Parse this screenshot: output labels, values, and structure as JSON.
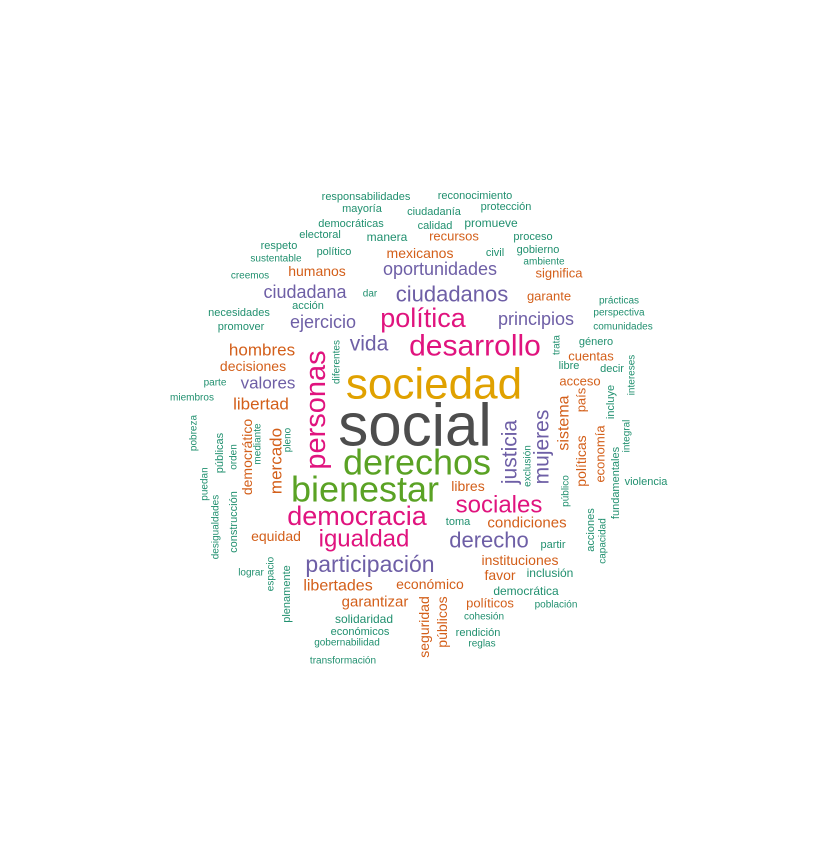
{
  "palette": {
    "gray": "#4d4d4d",
    "gold": "#e0a100",
    "green": "#5aa224",
    "magenta": "#e0137e",
    "purple": "#6e5fa6",
    "orange": "#d35f1a",
    "teal": "#21906f"
  },
  "chart_data": {
    "type": "wordcloud",
    "title": "",
    "words": [
      {
        "text": "social",
        "weight": 60,
        "color": "gray"
      },
      {
        "text": "sociedad",
        "weight": 44,
        "color": "gold"
      },
      {
        "text": "derechos",
        "weight": 36,
        "color": "green"
      },
      {
        "text": "bienestar",
        "weight": 36,
        "color": "green"
      },
      {
        "text": "desarrollo",
        "weight": 30,
        "color": "magenta"
      },
      {
        "text": "personas",
        "weight": 29,
        "color": "magenta",
        "vertical": true
      },
      {
        "text": "democracia",
        "weight": 27,
        "color": "magenta"
      },
      {
        "text": "política",
        "weight": 27,
        "color": "magenta"
      },
      {
        "text": "sociales",
        "weight": 24,
        "color": "magenta"
      },
      {
        "text": "igualdad",
        "weight": 24,
        "color": "magenta"
      },
      {
        "text": "participación",
        "weight": 23,
        "color": "purple"
      },
      {
        "text": "derecho",
        "weight": 22,
        "color": "purple"
      },
      {
        "text": "ciudadanos",
        "weight": 22,
        "color": "purple"
      },
      {
        "text": "justicia",
        "weight": 21,
        "color": "purple",
        "vertical": true
      },
      {
        "text": "mujeres",
        "weight": 21,
        "color": "purple",
        "vertical": true
      },
      {
        "text": "vida",
        "weight": 21,
        "color": "purple"
      },
      {
        "text": "oportunidades",
        "weight": 18,
        "color": "purple"
      },
      {
        "text": "principios",
        "weight": 18,
        "color": "purple"
      },
      {
        "text": "ciudadana",
        "weight": 18,
        "color": "purple"
      },
      {
        "text": "ejercicio",
        "weight": 18,
        "color": "purple"
      },
      {
        "text": "valores",
        "weight": 17,
        "color": "purple"
      },
      {
        "text": "hombres",
        "weight": 17,
        "color": "orange"
      },
      {
        "text": "libertad",
        "weight": 17,
        "color": "orange"
      },
      {
        "text": "mercado",
        "weight": 17,
        "color": "orange",
        "vertical": true
      },
      {
        "text": "libertades",
        "weight": 16,
        "color": "orange"
      },
      {
        "text": "sistema",
        "weight": 16,
        "color": "orange",
        "vertical": true
      },
      {
        "text": "condiciones",
        "weight": 15,
        "color": "orange"
      },
      {
        "text": "garantizar",
        "weight": 15,
        "color": "orange"
      },
      {
        "text": "humanos",
        "weight": 14,
        "color": "orange"
      },
      {
        "text": "mexicanos",
        "weight": 14,
        "color": "orange"
      },
      {
        "text": "decisiones",
        "weight": 14,
        "color": "orange"
      },
      {
        "text": "equidad",
        "weight": 14,
        "color": "orange"
      },
      {
        "text": "económico",
        "weight": 14,
        "color": "orange"
      },
      {
        "text": "instituciones",
        "weight": 14,
        "color": "orange"
      },
      {
        "text": "favor",
        "weight": 14,
        "color": "orange"
      },
      {
        "text": "libres",
        "weight": 14,
        "color": "orange"
      },
      {
        "text": "políticas",
        "weight": 14,
        "color": "orange",
        "vertical": true
      },
      {
        "text": "seguridad",
        "weight": 14,
        "color": "orange",
        "vertical": true
      },
      {
        "text": "públicos",
        "weight": 14,
        "color": "orange",
        "vertical": true
      },
      {
        "text": "democrático",
        "weight": 14,
        "color": "orange",
        "vertical": true
      },
      {
        "text": "recursos",
        "weight": 13,
        "color": "orange"
      },
      {
        "text": "país",
        "weight": 13,
        "color": "orange",
        "vertical": true
      },
      {
        "text": "economía",
        "weight": 13,
        "color": "orange",
        "vertical": true
      },
      {
        "text": "acceso",
        "weight": 13,
        "color": "orange"
      },
      {
        "text": "cuentas",
        "weight": 13,
        "color": "orange"
      },
      {
        "text": "políticos",
        "weight": 13,
        "color": "orange"
      },
      {
        "text": "significa",
        "weight": 13,
        "color": "orange"
      },
      {
        "text": "garante",
        "weight": 13,
        "color": "orange"
      },
      {
        "text": "responsabilidades",
        "weight": 11,
        "color": "teal"
      },
      {
        "text": "reconocimiento",
        "weight": 11,
        "color": "teal"
      },
      {
        "text": "mayoría",
        "weight": 11,
        "color": "teal"
      },
      {
        "text": "ciudadanía",
        "weight": 11,
        "color": "teal"
      },
      {
        "text": "protección",
        "weight": 11,
        "color": "teal"
      },
      {
        "text": "democráticas",
        "weight": 11,
        "color": "teal"
      },
      {
        "text": "calidad",
        "weight": 11,
        "color": "teal"
      },
      {
        "text": "promueve",
        "weight": 12,
        "color": "teal"
      },
      {
        "text": "electoral",
        "weight": 11,
        "color": "teal"
      },
      {
        "text": "manera",
        "weight": 12,
        "color": "teal"
      },
      {
        "text": "proceso",
        "weight": 11,
        "color": "teal"
      },
      {
        "text": "respeto",
        "weight": 11,
        "color": "teal"
      },
      {
        "text": "político",
        "weight": 11,
        "color": "teal"
      },
      {
        "text": "civil",
        "weight": 11,
        "color": "teal"
      },
      {
        "text": "gobierno",
        "weight": 11,
        "color": "teal"
      },
      {
        "text": "sustentable",
        "weight": 10,
        "color": "teal"
      },
      {
        "text": "ambiente",
        "weight": 10,
        "color": "teal"
      },
      {
        "text": "creemos",
        "weight": 10,
        "color": "teal"
      },
      {
        "text": "dar",
        "weight": 10,
        "color": "teal"
      },
      {
        "text": "prácticas",
        "weight": 10,
        "color": "teal"
      },
      {
        "text": "acción",
        "weight": 11,
        "color": "teal"
      },
      {
        "text": "perspectiva",
        "weight": 10,
        "color": "teal"
      },
      {
        "text": "necesidades",
        "weight": 11,
        "color": "teal"
      },
      {
        "text": "comunidades",
        "weight": 10,
        "color": "teal"
      },
      {
        "text": "promover",
        "weight": 11,
        "color": "teal"
      },
      {
        "text": "género",
        "weight": 11,
        "color": "teal"
      },
      {
        "text": "libre",
        "weight": 11,
        "color": "teal"
      },
      {
        "text": "decir",
        "weight": 11,
        "color": "teal"
      },
      {
        "text": "parte",
        "weight": 10,
        "color": "teal"
      },
      {
        "text": "miembros",
        "weight": 10,
        "color": "teal"
      },
      {
        "text": "trata",
        "weight": 10,
        "color": "teal",
        "vertical": true
      },
      {
        "text": "diferentes",
        "weight": 10,
        "color": "teal",
        "vertical": true
      },
      {
        "text": "intereses",
        "weight": 10,
        "color": "teal",
        "vertical": true
      },
      {
        "text": "incluye",
        "weight": 11,
        "color": "teal",
        "vertical": true
      },
      {
        "text": "integral",
        "weight": 10,
        "color": "teal",
        "vertical": true
      },
      {
        "text": "pobreza",
        "weight": 10,
        "color": "teal",
        "vertical": true
      },
      {
        "text": "públicas",
        "weight": 11,
        "color": "teal",
        "vertical": true
      },
      {
        "text": "orden",
        "weight": 10,
        "color": "teal",
        "vertical": true
      },
      {
        "text": "mediante",
        "weight": 10,
        "color": "teal",
        "vertical": true
      },
      {
        "text": "pleno",
        "weight": 10,
        "color": "teal",
        "vertical": true
      },
      {
        "text": "puedan",
        "weight": 10,
        "color": "teal",
        "vertical": true
      },
      {
        "text": "desigualdades",
        "weight": 10,
        "color": "teal",
        "vertical": true
      },
      {
        "text": "construcción",
        "weight": 11,
        "color": "teal",
        "vertical": true
      },
      {
        "text": "exclusión",
        "weight": 10,
        "color": "teal",
        "vertical": true
      },
      {
        "text": "público",
        "weight": 10,
        "color": "teal",
        "vertical": true
      },
      {
        "text": "fundamentales",
        "weight": 11,
        "color": "teal",
        "vertical": true
      },
      {
        "text": "violencia",
        "weight": 11,
        "color": "teal"
      },
      {
        "text": "acciones",
        "weight": 11,
        "color": "teal",
        "vertical": true
      },
      {
        "text": "capacidad",
        "weight": 10,
        "color": "teal",
        "vertical": true
      },
      {
        "text": "toma",
        "weight": 11,
        "color": "teal"
      },
      {
        "text": "partir",
        "weight": 11,
        "color": "teal"
      },
      {
        "text": "inclusión",
        "weight": 12,
        "color": "teal"
      },
      {
        "text": "lograr",
        "weight": 10,
        "color": "teal"
      },
      {
        "text": "espacio",
        "weight": 10,
        "color": "teal",
        "vertical": true
      },
      {
        "text": "plenamente",
        "weight": 11,
        "color": "teal",
        "vertical": true
      },
      {
        "text": "democrática",
        "weight": 12,
        "color": "teal"
      },
      {
        "text": "población",
        "weight": 10,
        "color": "teal"
      },
      {
        "text": "solidaridad",
        "weight": 12,
        "color": "teal"
      },
      {
        "text": "cohesión",
        "weight": 10,
        "color": "teal"
      },
      {
        "text": "económicos",
        "weight": 11,
        "color": "teal"
      },
      {
        "text": "rendición",
        "weight": 11,
        "color": "teal"
      },
      {
        "text": "gobernabilidad",
        "weight": 10,
        "color": "teal"
      },
      {
        "text": "reglas",
        "weight": 10,
        "color": "teal"
      },
      {
        "text": "transformación",
        "weight": 10,
        "color": "teal"
      }
    ]
  }
}
